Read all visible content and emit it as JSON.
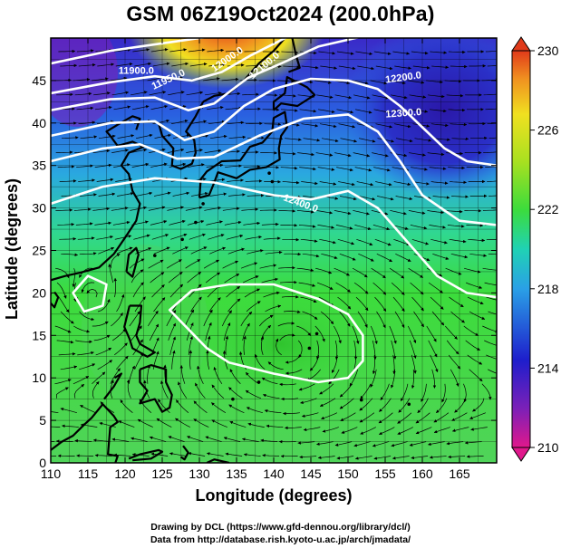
{
  "title": "GSM 06Z19Oct2024 (200.0hPa)",
  "map": {
    "xlabel": "Longitude (degrees)",
    "ylabel": "Latitude (degrees)",
    "x_ticks": [
      "110",
      "115",
      "120",
      "125",
      "130",
      "135",
      "140",
      "145",
      "150",
      "155",
      "160",
      "165"
    ],
    "y_ticks": [
      "0",
      "5",
      "10",
      "15",
      "20",
      "25",
      "30",
      "35",
      "40",
      "45"
    ],
    "x_range": [
      110,
      170
    ],
    "y_range": [
      0,
      50
    ],
    "grid": true,
    "contour_labels": [
      "11900.0",
      "11950.0",
      "12000.0",
      "12100.0",
      "12200.0",
      "12300.0",
      "12400.0"
    ],
    "colorbar": {
      "ticks": [
        "230",
        "226",
        "222",
        "218",
        "214",
        "210"
      ],
      "range": [
        210,
        230
      ],
      "colors": [
        "#e0188c",
        "#7a20b8",
        "#1e1ecc",
        "#2aa0e6",
        "#20d2b4",
        "#3cdc3c",
        "#a8e020",
        "#f0e020",
        "#f09020",
        "#e03a1a"
      ]
    }
  },
  "credits": {
    "line1": "Drawing by DCL (https://www.gfd-dennou.org/library/dcl/)",
    "line2": "Data from http://database.rish.kyoto-u.ac.jp/arch/jmadata/"
  }
}
